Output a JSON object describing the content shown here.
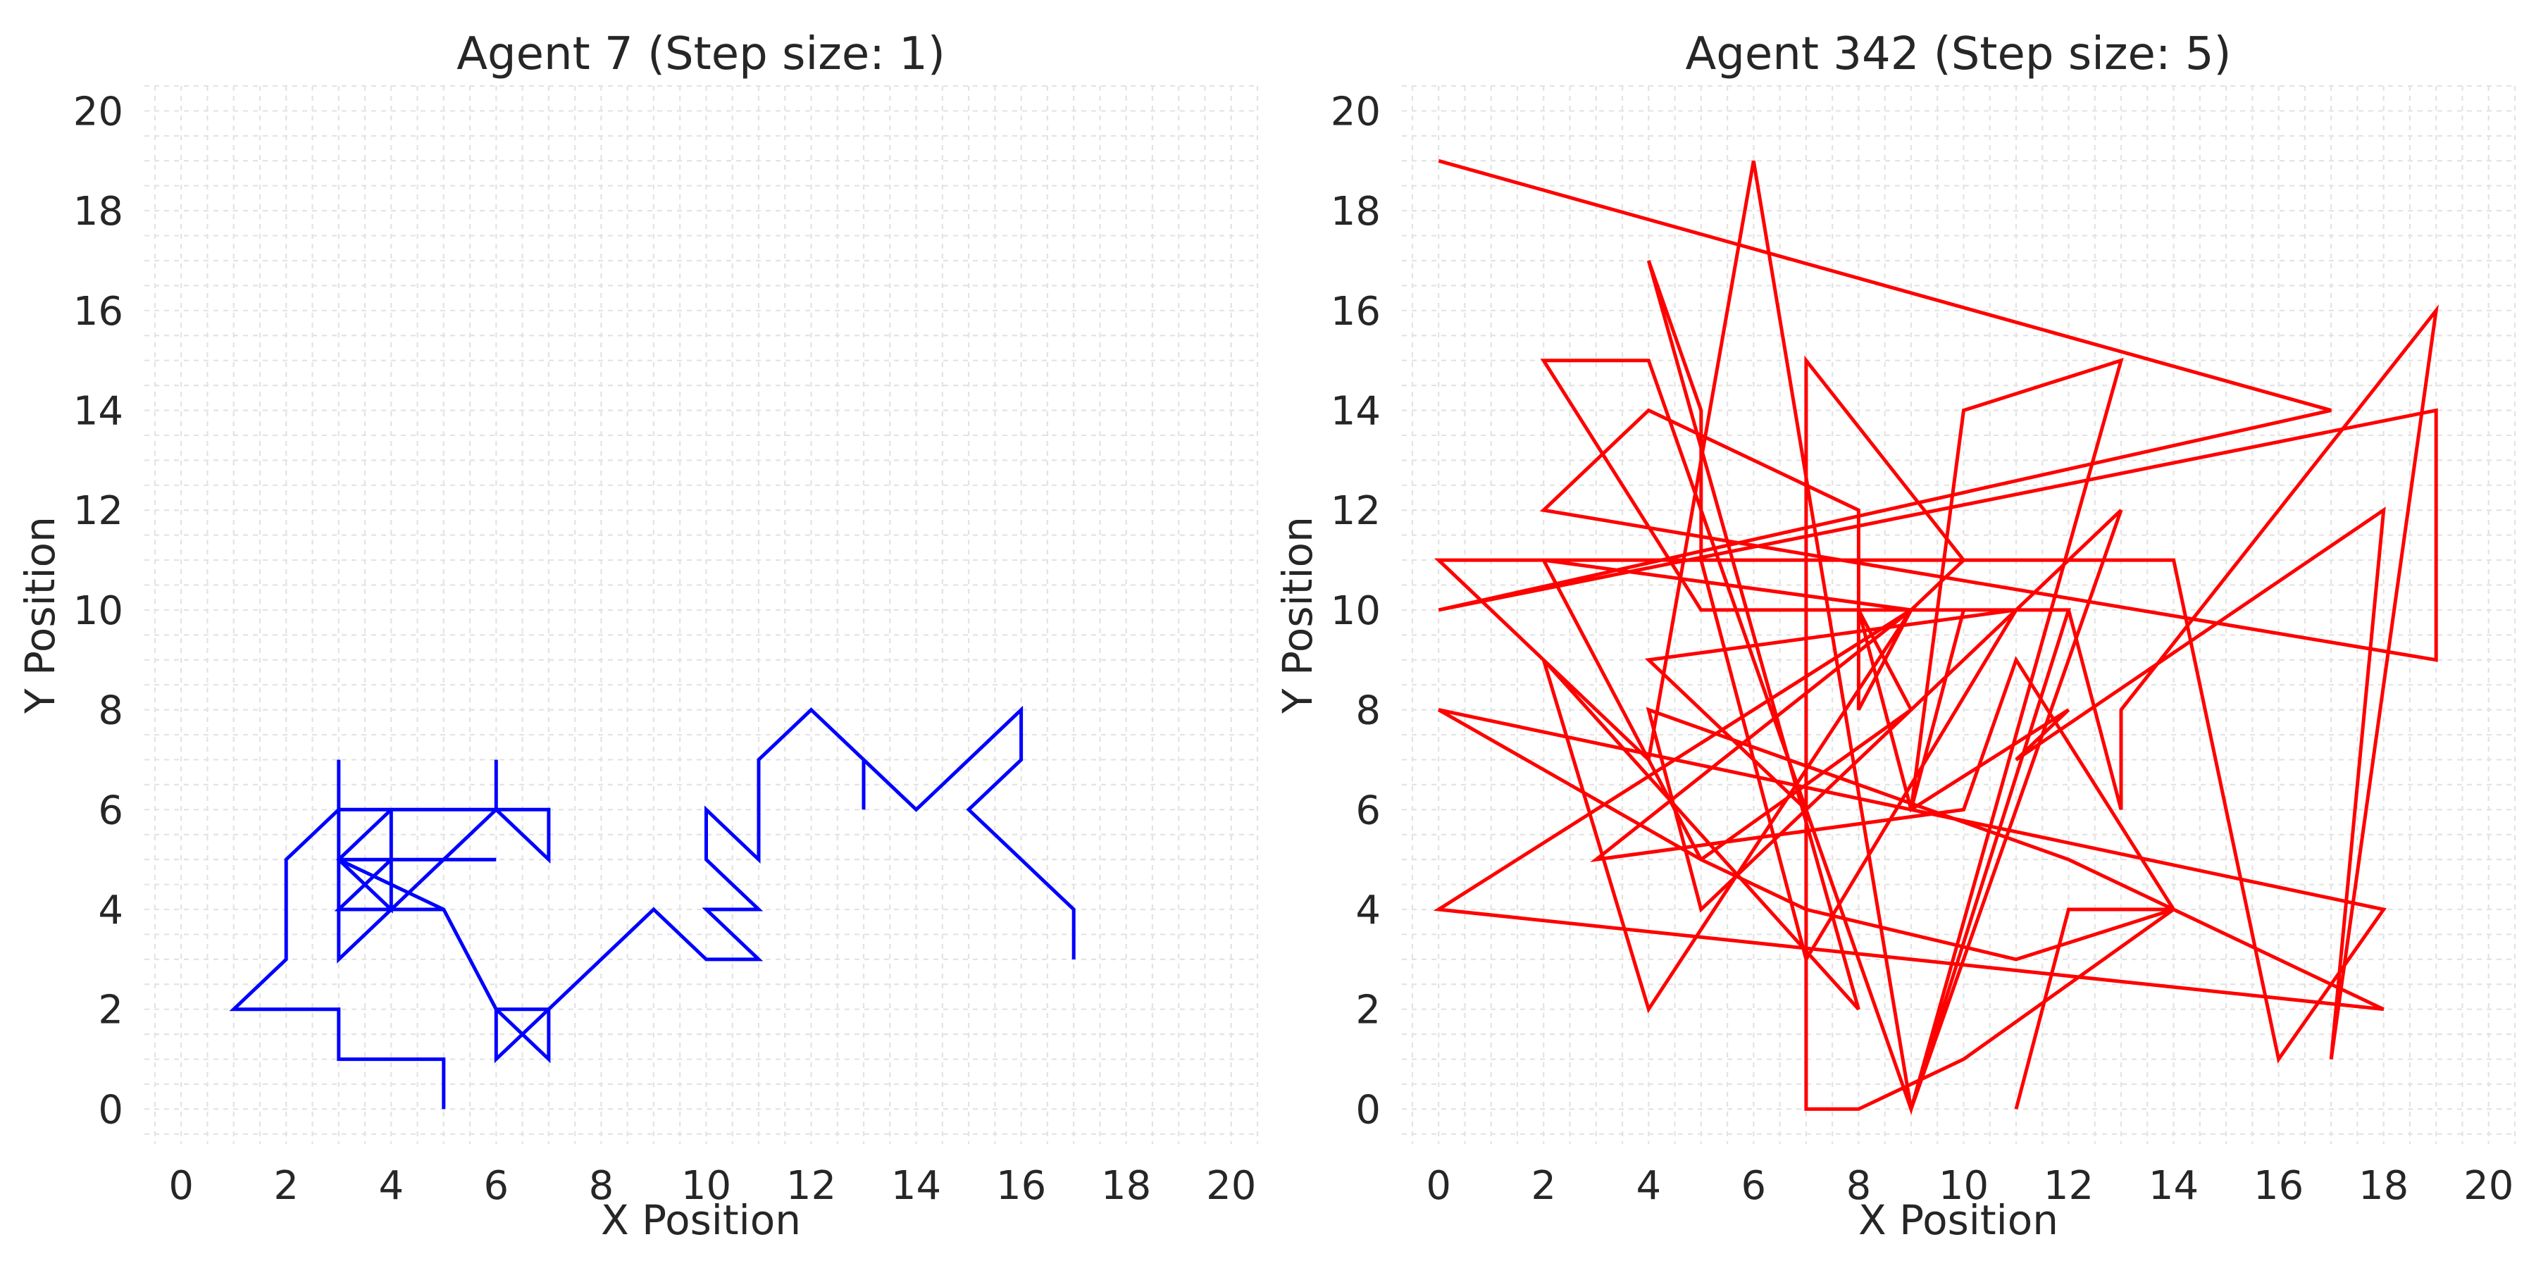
{
  "chart_data": [
    {
      "type": "line",
      "title": "Agent 7 (Step size: 1)",
      "xlabel": "X Position",
      "ylabel": "Y Position",
      "xlim": [
        -0.7,
        20.5
      ],
      "ylim": [
        -0.7,
        20.5
      ],
      "xticks": [
        0,
        2,
        4,
        6,
        8,
        10,
        12,
        14,
        16,
        18,
        20
      ],
      "yticks": [
        0,
        2,
        4,
        6,
        8,
        10,
        12,
        14,
        16,
        18,
        20
      ],
      "grid": true,
      "grid_step": 0.5,
      "series": [
        {
          "color": "#0000ff",
          "points": [
            [
              5,
              0
            ],
            [
              5,
              1
            ],
            [
              3,
              1
            ],
            [
              3,
              2
            ],
            [
              1,
              2
            ],
            [
              2,
              3
            ],
            [
              2,
              5
            ],
            [
              3,
              6
            ],
            [
              3,
              7
            ],
            [
              3,
              3
            ],
            [
              5,
              5
            ],
            [
              6,
              6
            ],
            [
              6,
              7
            ],
            [
              6,
              6
            ],
            [
              7,
              6
            ],
            [
              7,
              5
            ],
            [
              6,
              6
            ],
            [
              4,
              6
            ],
            [
              4,
              4
            ],
            [
              3,
              5
            ],
            [
              4,
              6
            ],
            [
              3,
              6
            ],
            [
              3,
              4
            ],
            [
              5,
              4
            ],
            [
              3,
              4
            ],
            [
              4,
              5
            ],
            [
              6,
              5
            ],
            [
              4,
              5
            ],
            [
              3,
              5
            ],
            [
              5,
              4
            ],
            [
              6,
              2
            ],
            [
              7,
              2
            ],
            [
              7,
              1
            ],
            [
              6,
              2
            ],
            [
              6,
              1
            ],
            [
              7,
              2
            ],
            [
              9,
              4
            ],
            [
              10,
              3
            ],
            [
              11,
              3
            ],
            [
              10,
              4
            ],
            [
              11,
              4
            ],
            [
              10,
              5
            ],
            [
              10,
              6
            ],
            [
              11,
              5
            ],
            [
              11,
              6
            ],
            [
              11,
              7
            ],
            [
              12,
              8
            ],
            [
              13,
              7
            ],
            [
              13,
              6
            ],
            [
              13,
              7
            ],
            [
              14,
              6
            ],
            [
              16,
              8
            ],
            [
              16,
              7
            ],
            [
              15,
              6
            ],
            [
              17,
              4
            ],
            [
              17,
              3
            ]
          ]
        }
      ]
    },
    {
      "type": "line",
      "title": "Agent 342 (Step size: 5)",
      "xlabel": "X Position",
      "ylabel": "Y Position",
      "xlim": [
        -0.7,
        20.5
      ],
      "ylim": [
        -0.7,
        20.5
      ],
      "xticks": [
        0,
        2,
        4,
        6,
        8,
        10,
        12,
        14,
        16,
        18,
        20
      ],
      "yticks": [
        0,
        2,
        4,
        6,
        8,
        10,
        12,
        14,
        16,
        18,
        20
      ],
      "grid": true,
      "grid_step": 0.5,
      "series": [
        {
          "color": "#ff0000",
          "points": [
            [
              0,
              19
            ],
            [
              17,
              14
            ],
            [
              0,
              10
            ],
            [
              19,
              14
            ],
            [
              19,
              9
            ],
            [
              2,
              12
            ],
            [
              4,
              14
            ],
            [
              8,
              12
            ],
            [
              8,
              8
            ],
            [
              9,
              10
            ],
            [
              3,
              5
            ],
            [
              10,
              6
            ],
            [
              11,
              9
            ],
            [
              14,
              4
            ],
            [
              10,
              1
            ],
            [
              8,
              0
            ],
            [
              7,
              0
            ],
            [
              7,
              15
            ],
            [
              10,
              11
            ],
            [
              9,
              10
            ],
            [
              2,
              11
            ],
            [
              0,
              11
            ],
            [
              4,
              7
            ],
            [
              6,
              19
            ],
            [
              9,
              0
            ],
            [
              12,
              10
            ],
            [
              10,
              10
            ],
            [
              9,
              6
            ],
            [
              10,
              14
            ],
            [
              13,
              15
            ],
            [
              9,
              0
            ],
            [
              7,
              6
            ],
            [
              4,
              9
            ],
            [
              11,
              10
            ],
            [
              7,
              3
            ],
            [
              5,
              11
            ],
            [
              5,
              14
            ],
            [
              4,
              17
            ],
            [
              8,
              2
            ],
            [
              2,
              9
            ],
            [
              4,
              2
            ],
            [
              9,
              10
            ],
            [
              0,
              4
            ],
            [
              18,
              2
            ],
            [
              12,
              5
            ],
            [
              4,
              8
            ],
            [
              5,
              4
            ],
            [
              13,
              12
            ],
            [
              9,
              0
            ],
            [
              4,
              15
            ],
            [
              2,
              15
            ],
            [
              5,
              10
            ],
            [
              12,
              10
            ],
            [
              13,
              6
            ],
            [
              13,
              8
            ],
            [
              19,
              16
            ],
            [
              17,
              1
            ],
            [
              18,
              12
            ],
            [
              11,
              7
            ],
            [
              12,
              8
            ],
            [
              9,
              6
            ],
            [
              8,
              10
            ],
            [
              9,
              8
            ],
            [
              5,
              5
            ],
            [
              0,
              8
            ],
            [
              18,
              4
            ],
            [
              16,
              1
            ],
            [
              14,
              11
            ],
            [
              2,
              11
            ],
            [
              5,
              5
            ],
            [
              7,
              4
            ],
            [
              11,
              3
            ],
            [
              14,
              4
            ],
            [
              12,
              4
            ],
            [
              11,
              0
            ]
          ]
        }
      ]
    }
  ]
}
